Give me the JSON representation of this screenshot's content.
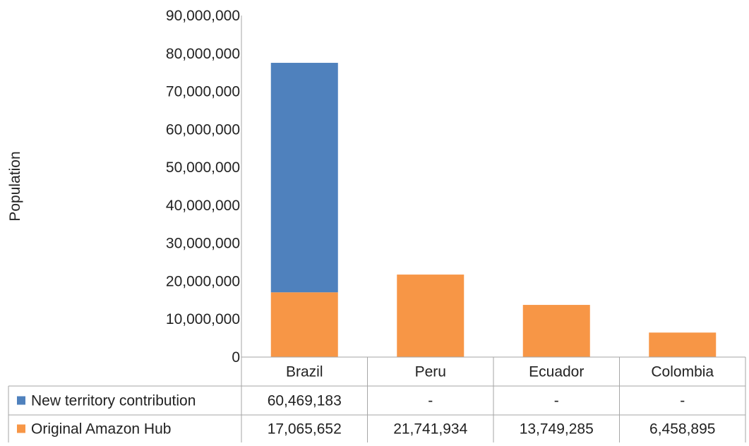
{
  "chart_data": {
    "type": "bar",
    "stacked": true,
    "ylabel": "Population",
    "ylim": [
      0,
      90000000
    ],
    "yticks": [
      "0",
      "10,000,000",
      "20,000,000",
      "30,000,000",
      "40,000,000",
      "50,000,000",
      "60,000,000",
      "70,000,000",
      "80,000,000",
      "90,000,000"
    ],
    "categories": [
      "Brazil",
      "Peru",
      "Ecuador",
      "Colombia"
    ],
    "series": [
      {
        "name": "Original Amazon Hub",
        "color": "#f79646",
        "values": [
          17065652,
          21741934,
          13749285,
          6458895
        ],
        "labels": [
          "17,065,652",
          "21,741,934",
          "13,749,285",
          "6,458,895"
        ]
      },
      {
        "name": "New territory contribution",
        "color": "#4f81bd",
        "values": [
          60469183,
          0,
          0,
          0
        ],
        "labels": [
          "60,469,183",
          "-",
          "-",
          "-"
        ]
      }
    ],
    "grid": false,
    "legend": "data-table"
  }
}
